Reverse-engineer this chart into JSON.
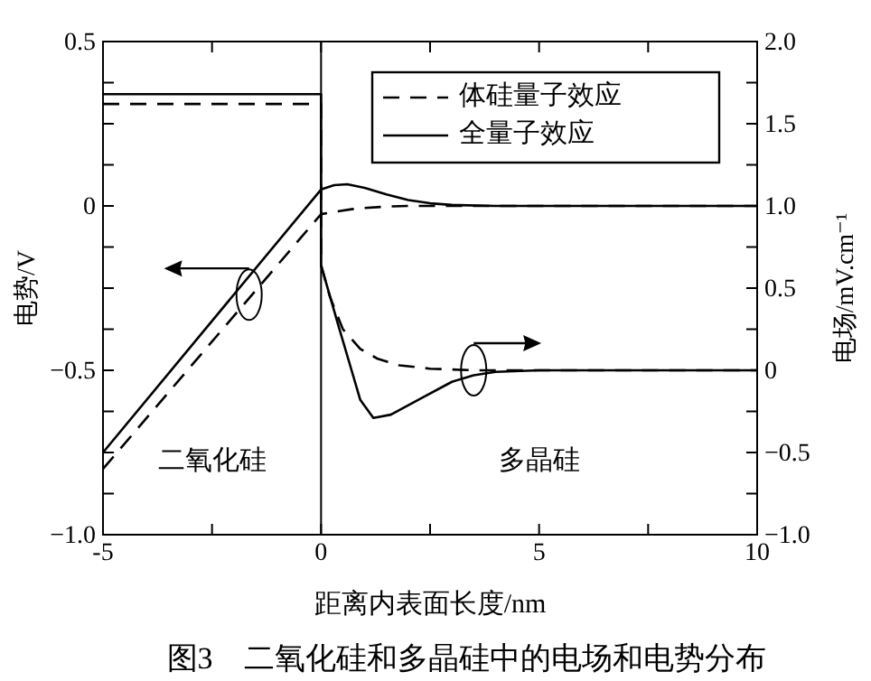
{
  "chart_data": {
    "type": "line",
    "title": "图3　二氧化硅和多晶硅中的电场和电势分布",
    "xlabel": "距离内表面长度/nm",
    "ylabel": "电势/V",
    "y2label": "电场/mV.cm⁻¹",
    "xlim": [
      -5,
      10
    ],
    "xticks": [
      -5,
      {
        "value": -2.5,
        "label": null
      },
      0,
      {
        "value": 2.5,
        "label": null
      },
      5,
      {
        "value": 7.5,
        "label": null
      },
      10
    ],
    "ylim": [
      -1,
      0.5
    ],
    "yticks": [
      {
        "value": -1,
        "label": "−1.0"
      },
      {
        "value": -0.875,
        "label": null
      },
      {
        "value": -0.75,
        "label": null
      },
      {
        "value": -0.625,
        "label": null
      },
      {
        "value": -0.5,
        "label": "−0.5"
      },
      {
        "value": -0.375,
        "label": null
      },
      {
        "value": -0.25,
        "label": null
      },
      {
        "value": -0.125,
        "label": null
      },
      0,
      {
        "value": 0.125,
        "label": null
      },
      {
        "value": 0.25,
        "label": null
      },
      {
        "value": 0.375,
        "label": null
      },
      0.5
    ],
    "y2lim": [
      -1,
      2
    ],
    "y2ticks": [
      {
        "value": -1,
        "label": "−1.0"
      },
      {
        "value": -0.75,
        "label": null
      },
      {
        "value": -0.5,
        "label": "−0.5"
      },
      {
        "value": -0.25,
        "label": null
      },
      0,
      {
        "value": 0.25,
        "label": null
      },
      {
        "value": 0.5,
        "label": "0.5"
      },
      {
        "value": 0.75,
        "label": null
      },
      {
        "value": 1,
        "label": "1.0"
      },
      {
        "value": 1.25,
        "label": null
      },
      {
        "value": 1.5,
        "label": "1.5"
      },
      {
        "value": 1.75,
        "label": null
      },
      {
        "value": 2,
        "label": "2.0"
      }
    ],
    "series": [
      {
        "name": "体硅量子效应",
        "color": "#000000",
        "line_style": "dashed",
        "x": [
          -5,
          0,
          0.3,
          0.7,
          1,
          1.5,
          2,
          3,
          10
        ],
        "values": [
          -0.8,
          -0.025,
          -0.018,
          -0.01,
          -0.006,
          -0.002,
          0,
          0,
          0
        ]
      },
      {
        "name": "全量子效应",
        "color": "#000000",
        "line_style": "solid",
        "x": [
          -5,
          0,
          0.3,
          0.6,
          1,
          1.5,
          2,
          2.5,
          3,
          4,
          6,
          10
        ],
        "values": [
          -0.75,
          0.05,
          0.063,
          0.066,
          0.055,
          0.035,
          0.018,
          0.008,
          0.003,
          0,
          0,
          0
        ]
      },
      {
        "color": "#000000",
        "line_style": "dashed",
        "axis": "y2",
        "x": [
          -5,
          0,
          0,
          0.2,
          0.5,
          0.9,
          1.3,
          1.8,
          2.5,
          3.5,
          10
        ],
        "values": [
          1.62,
          1.62,
          0.64,
          0.45,
          0.25,
          0.13,
          0.07,
          0.03,
          0.01,
          0,
          0
        ]
      },
      {
        "color": "#000000",
        "line_style": "solid",
        "axis": "y2",
        "x": [
          -5,
          0,
          0,
          0.4,
          0.7,
          0.9,
          1.2,
          1.6,
          2.3,
          3,
          3.5,
          4,
          5,
          10
        ],
        "values": [
          1.68,
          1.68,
          0.64,
          0.27,
          0.0,
          -0.18,
          -0.29,
          -0.27,
          -0.17,
          -0.07,
          -0.03,
          -0.01,
          0,
          0
        ]
      }
    ],
    "ref_lines": [
      {
        "axis": "x",
        "value": 0,
        "color": "#000000",
        "line_style": "solid"
      }
    ],
    "annotations": [
      "二氧化硅",
      "多晶硅"
    ],
    "legend": "top right",
    "marker": "none"
  }
}
